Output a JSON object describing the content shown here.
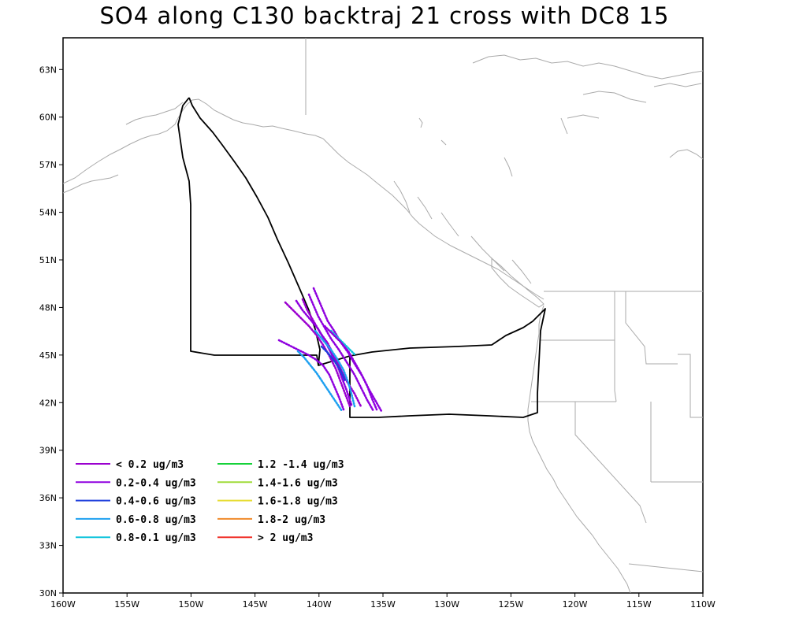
{
  "title": "SO4 along C130 backtraj 21 cross with DC8 15",
  "map": {
    "lon_range": [
      -160,
      -110
    ],
    "lat_range": [
      30,
      65
    ],
    "x_tick_labels": [
      "160W",
      "155W",
      "150W",
      "145W",
      "140W",
      "135W",
      "130W",
      "125W",
      "120W",
      "115W",
      "110W"
    ],
    "y_tick_labels": [
      "30N",
      "33N",
      "36N",
      "39N",
      "42N",
      "45N",
      "48N",
      "51N",
      "54N",
      "57N",
      "60N",
      "63N"
    ],
    "coastline_color": "#aaaaaa",
    "flight_track_color": "#000000"
  },
  "legend": {
    "items": [
      {
        "label": "< 0.2 ug/m3",
        "color": "#9b00cf"
      },
      {
        "label": "0.2-0.4 ug/m3",
        "color": "#8f00df"
      },
      {
        "label": "0.4-0.6 ug/m3",
        "color": "#1e3fdc"
      },
      {
        "label": "0.6-0.8 ug/m3",
        "color": "#1ea0f0"
      },
      {
        "label": "0.8-0.1 ug/m3",
        "color": "#10c4dc"
      },
      {
        "label": "1.2 -1.4 ug/m3",
        "color": "#16d23a"
      },
      {
        "label": "1.4-1.6 ug/m3",
        "color": "#a0dc3a"
      },
      {
        "label": "1.6-1.8 ug/m3",
        "color": "#e6dc32"
      },
      {
        "label": "1.8-2 ug/m3",
        "color": "#f08a2a"
      },
      {
        "label": "> 2 ug/m3",
        "color": "#f0322a"
      }
    ]
  }
}
